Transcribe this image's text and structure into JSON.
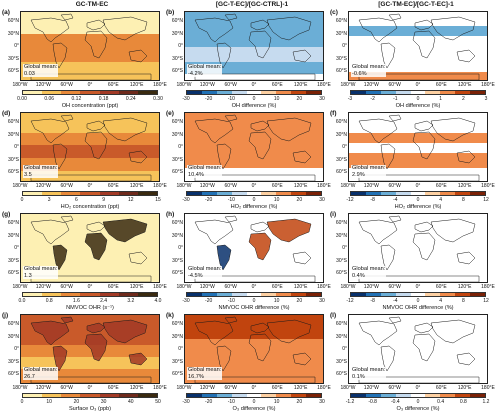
{
  "titles": {
    "col1": "GC-TM-EC",
    "col2": "[GC-T-EC]/[GC-CTRL]-1",
    "col3": "[GC-TM-EC]/[GC-T-EC]-1"
  },
  "lat_labels": [
    "60°N",
    "30°N",
    "0°",
    "30°S",
    "60°S"
  ],
  "lon_labels": [
    "180°W",
    "120°W",
    "60°W",
    "0°",
    "60°E",
    "120°E",
    "180°E"
  ],
  "global_mean_label": "Global mean:",
  "panels": [
    {
      "id": "a",
      "label": "(a)",
      "mean": "0.03"
    },
    {
      "id": "b",
      "label": "(b)",
      "mean": "-4.2%"
    },
    {
      "id": "c",
      "label": "(c)",
      "mean": "-0.6%"
    },
    {
      "id": "d",
      "label": "(d)",
      "mean": "3.5"
    },
    {
      "id": "e",
      "label": "(e)",
      "mean": "10.4%"
    },
    {
      "id": "f",
      "label": "(f)",
      "mean": "2.9%"
    },
    {
      "id": "g",
      "label": "(g)",
      "mean": "1.3"
    },
    {
      "id": "h",
      "label": "(h)",
      "mean": "-4.5%"
    },
    {
      "id": "i",
      "label": "(i)",
      "mean": "0.4%"
    },
    {
      "id": "j",
      "label": "(j)",
      "mean": "26.7"
    },
    {
      "id": "k",
      "label": "(k)",
      "mean": "16.7%"
    },
    {
      "id": "l",
      "label": "(l)",
      "mean": "0.1%"
    }
  ],
  "colorbars": [
    {
      "id": "a",
      "ticks": [
        "0.00",
        "0.06",
        "0.12",
        "0.18",
        "0.24",
        "0.30"
      ],
      "title": "OH concentration (ppt)",
      "scheme": "seq"
    },
    {
      "id": "b",
      "ticks": [
        "-30",
        "-20",
        "-10",
        "0",
        "10",
        "20",
        "30"
      ],
      "title": "OH difference (%)",
      "scheme": "div"
    },
    {
      "id": "c",
      "ticks": [
        "-3",
        "-2",
        "-1",
        "0",
        "1",
        "2",
        "3"
      ],
      "title": "OH difference (%)",
      "scheme": "div"
    },
    {
      "id": "d",
      "ticks": [
        "0",
        "3",
        "6",
        "9",
        "12",
        "15"
      ],
      "title": "HO₂ concentration (ppt)",
      "scheme": "seq"
    },
    {
      "id": "e",
      "ticks": [
        "-30",
        "-20",
        "-10",
        "0",
        "10",
        "20",
        "30"
      ],
      "title": "HO₂ difference (%)",
      "scheme": "div"
    },
    {
      "id": "f",
      "ticks": [
        "-12",
        "-8",
        "-4",
        "0",
        "4",
        "8",
        "12"
      ],
      "title": "HO₂ difference (%)",
      "scheme": "div"
    },
    {
      "id": "g",
      "ticks": [
        "0.0",
        "0.8",
        "1.6",
        "2.4",
        "3.2",
        "4.0"
      ],
      "title": "NMVOC OHR (s⁻¹)",
      "scheme": "seq"
    },
    {
      "id": "h",
      "ticks": [
        "-30",
        "-20",
        "-10",
        "0",
        "10",
        "20",
        "30"
      ],
      "title": "NMVOC OHR difference (%)",
      "scheme": "div"
    },
    {
      "id": "i",
      "ticks": [
        "-12",
        "-8",
        "-4",
        "0",
        "4",
        "8",
        "12"
      ],
      "title": "NMVOC OHR difference (%)",
      "scheme": "div"
    },
    {
      "id": "j",
      "ticks": [
        "0",
        "10",
        "20",
        "30",
        "40",
        "50"
      ],
      "title": "Surface O₃ (ppb)",
      "scheme": "seq"
    },
    {
      "id": "k",
      "ticks": [
        "-30",
        "-20",
        "-10",
        "0",
        "10",
        "20",
        "30"
      ],
      "title": "O₃ difference (%)",
      "scheme": "div"
    },
    {
      "id": "l",
      "ticks": [
        "-1.2",
        "-0.8",
        "-0.4",
        "0",
        "0.4",
        "0.8",
        "1.2"
      ],
      "title": "O₃ difference (%)",
      "scheme": "div"
    }
  ],
  "colors": {
    "seq": [
      "#fdf0b3",
      "#f6c35a",
      "#e8893a",
      "#c95a2a",
      "#a23a26",
      "#6e2a1c",
      "#3a2a10"
    ],
    "div": [
      "#08306b",
      "#2171b5",
      "#6baed6",
      "#c6dbef",
      "#ffffff",
      "#fdd0a2",
      "#f08b4b",
      "#c1440e",
      "#7a2106"
    ],
    "land_line": "#1a1a1a"
  }
}
